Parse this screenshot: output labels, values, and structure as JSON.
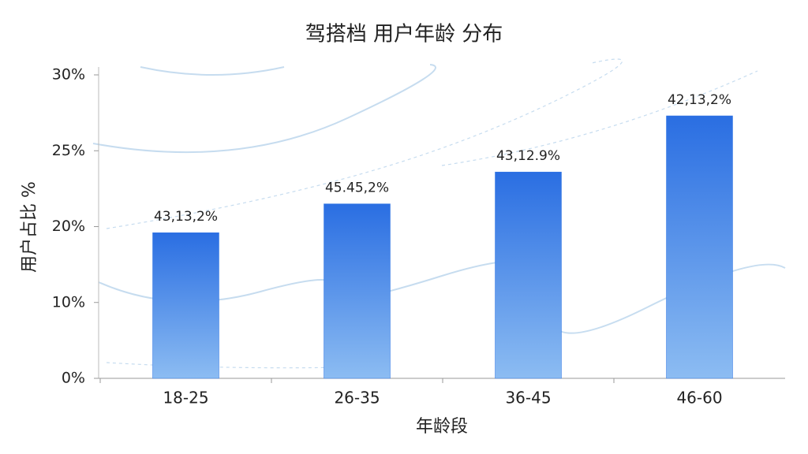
{
  "chart_data": {
    "type": "bar",
    "title": "驾搭档 用户年龄 分布",
    "x_label": "年龄段",
    "y_label": "用户占比 %",
    "categories": [
      "18-25",
      "26-35",
      "36-45",
      "46-60"
    ],
    "values": [
      19.2,
      21.5,
      23.6,
      27.3
    ],
    "annotations": [
      "43,13,2%",
      "45.45,2%",
      "43,12.9%",
      "42,13,2%"
    ],
    "color": "#2f74e4",
    "ylim": [
      0,
      30
    ],
    "yticks": [
      {
        "value": 0,
        "label": "0%"
      },
      {
        "value": 10,
        "label": "10%"
      },
      {
        "value": 20,
        "label": "20%"
      },
      {
        "value": 25,
        "label": "25%"
      },
      {
        "value": 30,
        "label": "30%"
      }
    ]
  }
}
